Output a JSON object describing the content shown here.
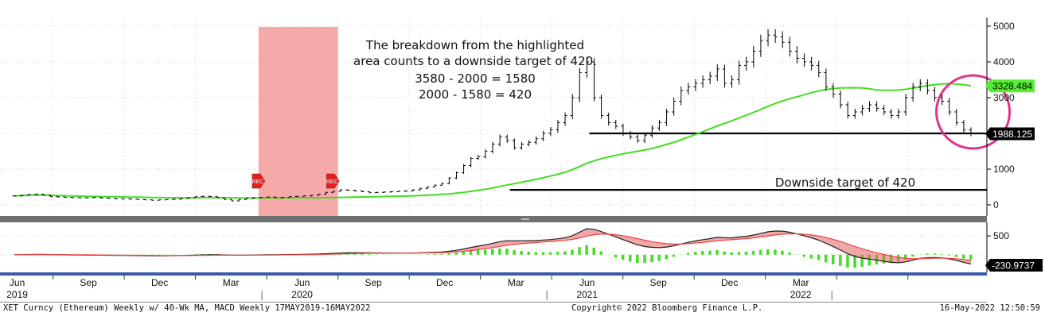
{
  "chart_data": [
    {
      "type": "line",
      "panel": "price",
      "title": "",
      "ylabel": "",
      "ylim": [
        0,
        5000
      ],
      "y_ticks": [
        0,
        1000,
        2000,
        3000,
        4000,
        5000
      ],
      "grid": true,
      "x_ticks": [
        {
          "label": "Jun",
          "year": "2019",
          "t": 0.038
        },
        {
          "label": "Sep",
          "year": "",
          "t": 0.108
        },
        {
          "label": "Dec",
          "year": "",
          "t": 0.178
        },
        {
          "label": "Mar",
          "year": "",
          "t": 0.248
        },
        {
          "label": "Jun",
          "year": "2020",
          "t": 0.318
        },
        {
          "label": "Sep",
          "year": "",
          "t": 0.388
        },
        {
          "label": "Dec",
          "year": "",
          "t": 0.458
        },
        {
          "label": "Mar",
          "year": "",
          "t": 0.528
        },
        {
          "label": "Jun",
          "year": "2021",
          "t": 0.598
        },
        {
          "label": "Sep",
          "year": "",
          "t": 0.668
        },
        {
          "label": "Dec",
          "year": "",
          "t": 0.738
        },
        {
          "label": "Mar",
          "year": "2022",
          "t": 0.808
        },
        {
          "label": "",
          "year": "",
          "t": 0.878
        }
      ],
      "x_year_labels": [
        "2019",
        "2020",
        "2021",
        "2022"
      ],
      "price_series": [
        250,
        270,
        290,
        300,
        270,
        230,
        220,
        210,
        200,
        195,
        200,
        210,
        190,
        180,
        170,
        165,
        160,
        150,
        140,
        130,
        140,
        150,
        160,
        180,
        200,
        230,
        240,
        230,
        200,
        150,
        110,
        150,
        180,
        200,
        210,
        220,
        200,
        210,
        230,
        240,
        250,
        270,
        300,
        350,
        380,
        420,
        410,
        390,
        370,
        340,
        350,
        360,
        370,
        380,
        390,
        420,
        460,
        500,
        550,
        600,
        750,
        900,
        1100,
        1300,
        1350,
        1500,
        1700,
        1900,
        1800,
        1600,
        1700,
        1750,
        1850,
        2000,
        2100,
        2300,
        2500,
        3000,
        3700,
        4000,
        3000,
        2500,
        2300,
        2200,
        2000,
        1900,
        1800,
        1950,
        2150,
        2300,
        2600,
        2900,
        3200,
        3300,
        3400,
        3500,
        3600,
        3800,
        3400,
        3500,
        3900,
        4000,
        4300,
        4600,
        4750,
        4700,
        4550,
        4300,
        4100,
        4000,
        3900,
        3700,
        3300,
        3100,
        2800,
        2500,
        2600,
        2700,
        2800,
        2700,
        2600,
        2500,
        2600,
        3000,
        3300,
        3400,
        3200,
        3000,
        2900,
        2600,
        2300,
        2100,
        1988
      ],
      "series": [
        {
          "name": "",
          "color": "#000000",
          "values_ref": "price_series"
        },
        {
          "name": "",
          "color": "#44dd22",
          "ma_weeks": 40
        }
      ],
      "reference_lines": [
        {
          "value": 2000,
          "from_t": 0.565,
          "color": "#000000"
        },
        {
          "value": 420,
          "from_t": 0.487,
          "color": "#000000"
        }
      ],
      "last_values": [
        {
          "label": "3328.484",
          "value": 3328.484,
          "color": "#55ee33"
        },
        {
          "label": "1988.125",
          "value": 1988.125,
          "color": "#000000"
        }
      ],
      "shaded_region": {
        "from_t": 0.24,
        "to_t": 0.318,
        "color": "#f39a9a"
      },
      "markers": [
        {
          "label": "REC",
          "t": 0.24
        },
        {
          "label": "REC",
          "t": 0.313
        }
      ],
      "annotations": [
        "The breakdown from the highlighted",
        "area counts to a downside target of 420.",
        "3580 - 2000 = 1580",
        "2000 - 1580 = 420"
      ],
      "target_label": "Downside target of 420",
      "circle_highlight": {
        "t": 0.942,
        "value": 2600,
        "color": "#e0338a"
      }
    },
    {
      "type": "line",
      "panel": "macd",
      "title": "",
      "ylabel": "",
      "ylim": [
        -450,
        800
      ],
      "y_ticks": [
        500
      ],
      "last_value": {
        "label": "-230.9737",
        "value": -230.9737
      },
      "series": [
        {
          "name": "",
          "color": "#222222",
          "role": "macd"
        },
        {
          "name": "",
          "color": "#ee4444",
          "role": "signal"
        },
        {
          "name": "",
          "color": "#44dd22",
          "role": "histogram"
        }
      ]
    }
  ],
  "footer": {
    "left": "XET Curncy (Ethereum) Weekly w/ 40-Wk MA, MACD  Weekly 17MAY2019-16MAY2022",
    "center": "Copyright© 2022 Bloomberg Finance L.P.",
    "right": "16-May-2022 12:50:59"
  },
  "colors": {
    "ma": "#44dd22",
    "macd": "#222222",
    "signal": "#ee4444",
    "histogram": "#44dd22",
    "rec_shade": "#f39a9a",
    "rec_marker": "#dd2222",
    "circle": "#e0338a",
    "price_tag": "#000000",
    "ma_tag": "#55ee33"
  }
}
